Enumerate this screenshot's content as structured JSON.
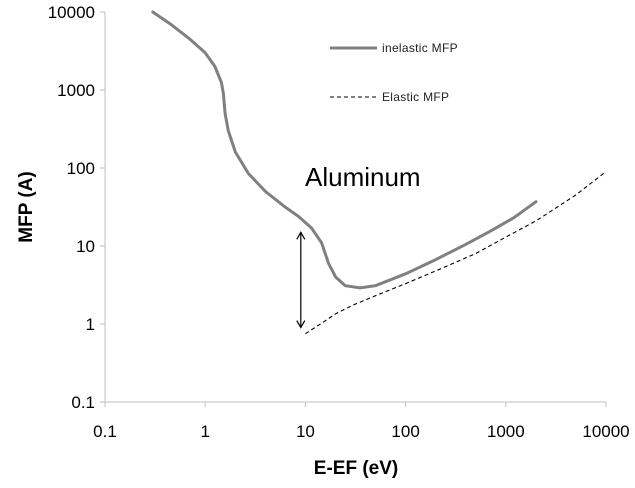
{
  "chart_data": {
    "type": "line",
    "xlabel": "E-EF (eV)",
    "ylabel": "MFP (A)",
    "xscale": "log",
    "yscale": "log",
    "xlim": [
      0.1,
      10000
    ],
    "ylim": [
      0.1,
      10000
    ],
    "x_ticks": [
      0.1,
      1,
      10,
      100,
      1000,
      10000
    ],
    "x_tick_labels": [
      "0.1",
      "1",
      "10",
      "100",
      "1000",
      "10000"
    ],
    "y_ticks": [
      0.1,
      1,
      10,
      100,
      1000,
      10000
    ],
    "y_tick_labels": [
      "0.1",
      "1",
      "10",
      "100",
      "1000",
      "10000"
    ],
    "grid": false,
    "legend_position": "top-right",
    "annotation": "Aluminum",
    "arrow": {
      "x": 9,
      "y_from": 15,
      "y_to": 0.9
    },
    "series": [
      {
        "name": "inelastic MFP",
        "style": "solid",
        "color": "#808080",
        "points": [
          [
            0.3,
            10000
          ],
          [
            0.45,
            7000
          ],
          [
            0.7,
            4500
          ],
          [
            1.0,
            3000
          ],
          [
            1.25,
            2000
          ],
          [
            1.45,
            1250
          ],
          [
            1.52,
            900
          ],
          [
            1.58,
            500
          ],
          [
            1.7,
            300
          ],
          [
            2.0,
            160
          ],
          [
            2.7,
            85
          ],
          [
            4.0,
            50
          ],
          [
            6.0,
            33
          ],
          [
            8.5,
            24
          ],
          [
            11.5,
            17
          ],
          [
            14.5,
            11
          ],
          [
            17.0,
            6
          ],
          [
            20.0,
            4
          ],
          [
            25.0,
            3.1
          ],
          [
            35.0,
            2.9
          ],
          [
            50.0,
            3.1
          ],
          [
            100.0,
            4.4
          ],
          [
            200.0,
            6.7
          ],
          [
            400.0,
            10.5
          ],
          [
            700.0,
            15.5
          ],
          [
            1200.0,
            23
          ],
          [
            2000.0,
            37
          ]
        ]
      },
      {
        "name": "Elastic MFP",
        "style": "dashed",
        "color": "#000000",
        "points": [
          [
            10.0,
            0.75
          ],
          [
            15.0,
            1.05
          ],
          [
            20.0,
            1.35
          ],
          [
            30.0,
            1.75
          ],
          [
            50.0,
            2.3
          ],
          [
            100.0,
            3.3
          ],
          [
            200.0,
            4.8
          ],
          [
            500.0,
            8
          ],
          [
            1000.0,
            13
          ],
          [
            2000.0,
            21
          ],
          [
            5000.0,
            45
          ],
          [
            10000.0,
            90
          ]
        ]
      }
    ]
  }
}
